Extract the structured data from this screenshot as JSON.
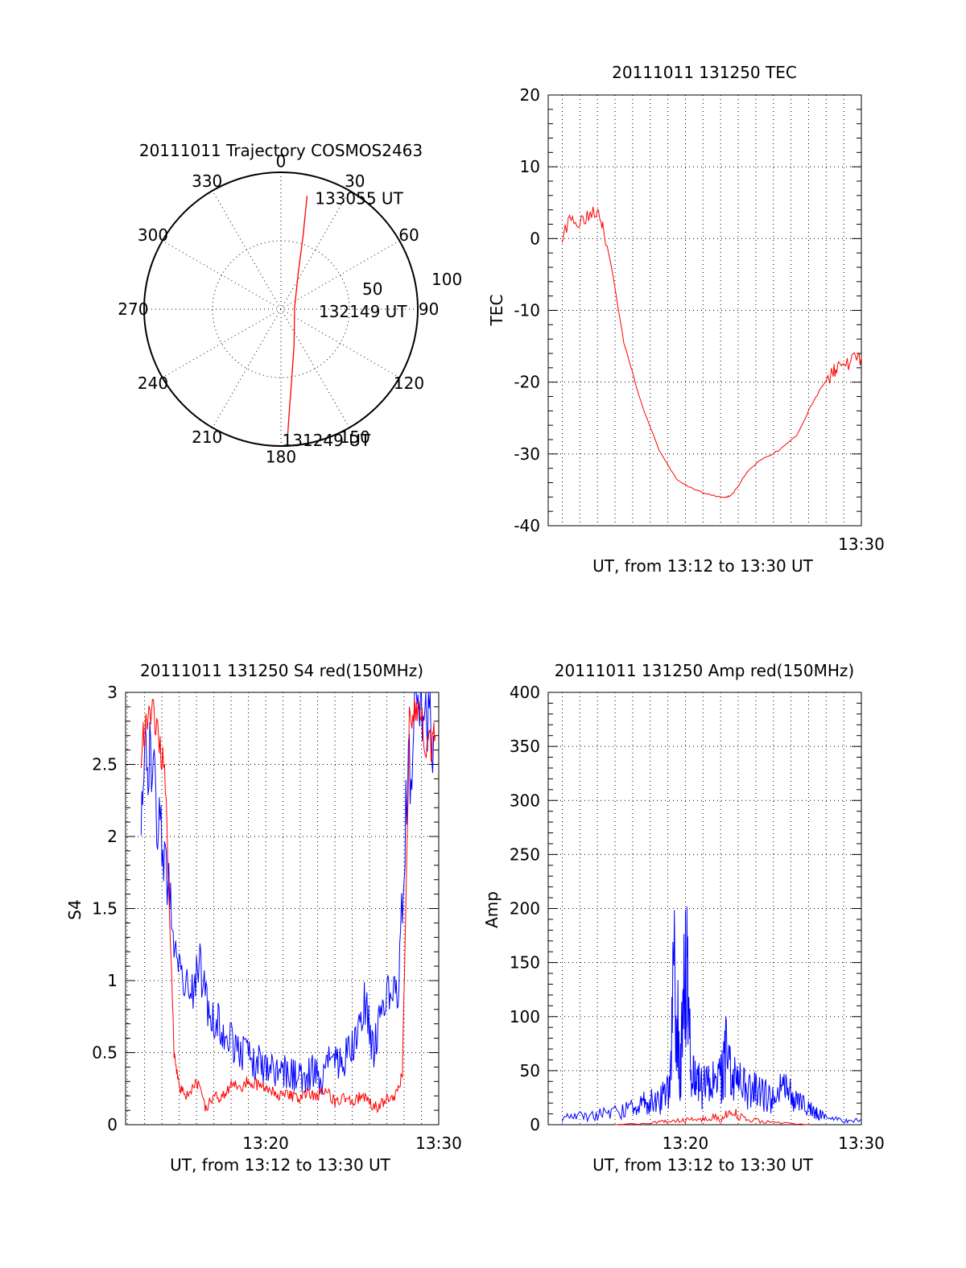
{
  "colors": {
    "red": "#ff0000",
    "blue": "#0000ff",
    "axis": "#000000"
  },
  "chart_data": [
    {
      "type": "polar",
      "title": "20111011 Trajectory COSMOS2463",
      "azimuth_labels": [
        "0",
        "30",
        "60",
        "90",
        "120",
        "150",
        "180",
        "210",
        "240",
        "270",
        "300",
        "330"
      ],
      "radial_labels": [
        "50",
        "100"
      ],
      "radial_range": [
        0,
        100
      ],
      "series": [
        {
          "color": "red",
          "points": [
            {
              "az": 13,
              "r": 85
            },
            {
              "az": 17,
              "r": 55
            },
            {
              "az": 25,
              "r": 30
            },
            {
              "az": 85,
              "r": 10
            },
            {
              "az": 160,
              "r": 28
            },
            {
              "az": 172,
              "r": 55
            },
            {
              "az": 175,
              "r": 72
            },
            {
              "az": 177,
              "r": 93
            }
          ]
        }
      ],
      "annotations": [
        {
          "text": "133055 UT",
          "az": 18,
          "r": 88
        },
        {
          "text": "132149 UT",
          "az": 88,
          "r": 30
        },
        {
          "text": "131249 UT",
          "az": 178,
          "r": 93
        }
      ]
    },
    {
      "type": "line",
      "title": "20111011 131250 TEC",
      "ylabel": "TEC",
      "xlabel": "UT, from 13:12 to 13:30 UT",
      "xlim": [
        12.2,
        30.0
      ],
      "ylim": [
        -40,
        20
      ],
      "yticks": [
        -40,
        -30,
        -20,
        -10,
        0,
        10,
        20
      ],
      "xtick_labels": [
        {
          "x": 30,
          "label": "13:30"
        }
      ],
      "grid": true,
      "series": [
        {
          "color": "red",
          "x": [
            13.0,
            13.5,
            14.0,
            14.5,
            15.0,
            15.3,
            15.8,
            16.5,
            17.5,
            18.5,
            19.5,
            20.5,
            21.5,
            22.2,
            22.5,
            22.8,
            23.5,
            24.3,
            25.3,
            26.3,
            27.2,
            27.8,
            28.4,
            28.7,
            29.2,
            29.6,
            30.0
          ],
          "y": [
            0.5,
            2.5,
            2.5,
            3.5,
            4.2,
            2.2,
            -4.0,
            -14.5,
            -23.0,
            -29.5,
            -33.5,
            -35.0,
            -35.8,
            -36.0,
            -35.9,
            -35.2,
            -32.5,
            -30.8,
            -29.5,
            -27.5,
            -23.0,
            -20.5,
            -18.5,
            -17.8,
            -17.5,
            -17.0,
            -16.5
          ]
        }
      ]
    },
    {
      "type": "line",
      "title": "20111011 131250 S4 red(150MHz)",
      "ylabel": "S4",
      "xlabel": "UT, from 13:12 to 13:30 UT",
      "xlim": [
        11.9,
        30.0
      ],
      "ylim": [
        0,
        3
      ],
      "yticks": [
        0,
        0.5,
        1,
        1.5,
        2,
        2.5,
        3
      ],
      "xtick_labels": [
        {
          "x": 20,
          "label": "13:20"
        },
        {
          "x": 30,
          "label": "13:30"
        }
      ],
      "grid": true,
      "series": [
        {
          "color": "blue",
          "x": [
            12.8,
            13.2,
            13.7,
            14.2,
            14.7,
            15.2,
            15.7,
            16.2,
            16.7,
            17.2,
            17.7,
            18.2,
            18.7,
            19.2,
            19.7,
            20.2,
            20.7,
            21.2,
            21.7,
            22.2,
            22.7,
            23.2,
            23.7,
            24.2,
            24.7,
            25.2,
            25.7,
            26.2,
            26.7,
            27.2,
            27.7,
            28.2,
            28.7,
            29.2,
            29.7
          ],
          "y": [
            2.3,
            2.6,
            2.2,
            1.8,
            1.3,
            1.05,
            0.9,
            1.1,
            0.75,
            0.7,
            0.65,
            0.55,
            0.5,
            0.45,
            0.42,
            0.4,
            0.38,
            0.37,
            0.33,
            0.3,
            0.38,
            0.3,
            0.5,
            0.4,
            0.48,
            0.6,
            0.9,
            0.5,
            0.8,
            0.9,
            1.0,
            2.4,
            2.8,
            2.9,
            2.7
          ]
        },
        {
          "color": "red",
          "x": [
            12.8,
            13.2,
            13.7,
            14.2,
            14.7,
            15.0,
            15.4,
            16.0,
            16.5,
            17.0,
            17.5,
            18.0,
            18.5,
            19.0,
            19.5,
            20.0,
            20.5,
            21.0,
            21.5,
            22.0,
            22.5,
            23.0,
            23.5,
            24.0,
            24.5,
            25.0,
            25.5,
            26.0,
            26.5,
            27.0,
            27.5,
            27.9,
            28.3,
            28.8,
            29.4,
            29.8
          ],
          "y": [
            2.6,
            2.9,
            2.8,
            2.4,
            0.5,
            0.25,
            0.2,
            0.3,
            0.12,
            0.18,
            0.2,
            0.28,
            0.25,
            0.3,
            0.28,
            0.25,
            0.22,
            0.2,
            0.2,
            0.18,
            0.22,
            0.2,
            0.25,
            0.15,
            0.18,
            0.15,
            0.2,
            0.15,
            0.12,
            0.18,
            0.2,
            0.35,
            2.8,
            2.9,
            2.6,
            2.7
          ]
        }
      ]
    },
    {
      "type": "line",
      "title": "20111011 131250 Amp red(150MHz)",
      "ylabel": "Amp",
      "xlabel": "UT, from 13:12 to 13:30 UT",
      "xlim": [
        12.2,
        30.0
      ],
      "ylim": [
        0,
        400
      ],
      "yticks": [
        0,
        50,
        100,
        150,
        200,
        250,
        300,
        350,
        400
      ],
      "xtick_labels": [
        {
          "x": 20,
          "label": "13:20"
        },
        {
          "x": 30,
          "label": "13:30"
        }
      ],
      "grid": true,
      "series": [
        {
          "color": "blue",
          "x": [
            13.0,
            14.0,
            15.0,
            16.0,
            17.0,
            17.5,
            18.0,
            18.5,
            19.0,
            19.4,
            19.7,
            20.0,
            20.3,
            20.6,
            21.0,
            21.5,
            22.0,
            22.3,
            22.6,
            23.0,
            23.5,
            24.0,
            24.5,
            25.0,
            25.5,
            26.0,
            26.5,
            27.0,
            27.5,
            28.0,
            29.0,
            30.0
          ],
          "y": [
            8,
            10,
            12,
            15,
            20,
            25,
            28,
            30,
            38,
            185,
            60,
            225,
            70,
            55,
            45,
            50,
            60,
            85,
            60,
            50,
            45,
            40,
            38,
            30,
            42,
            35,
            25,
            20,
            15,
            8,
            6,
            5
          ]
        },
        {
          "color": "red",
          "x": [
            16.0,
            18.0,
            19.0,
            20.0,
            21.0,
            22.0,
            22.7,
            23.5,
            25.0,
            27.0
          ],
          "y": [
            0,
            2,
            4,
            6,
            7,
            9,
            14,
            6,
            3,
            0
          ]
        }
      ]
    }
  ]
}
